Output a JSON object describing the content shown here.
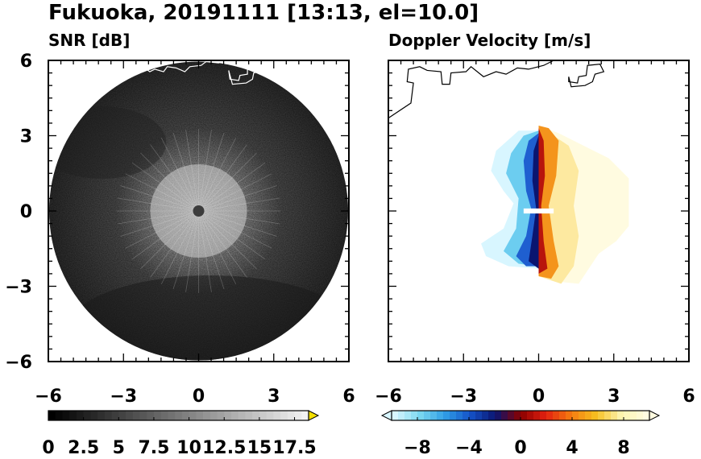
{
  "figure": {
    "title": "Fukuoka, 20191111 [13:13, el=10.0]"
  },
  "chart_data": [
    {
      "type": "heatmap",
      "title": "SNR [dB]",
      "xlim": [
        -6,
        6
      ],
      "ylim": [
        -6,
        6
      ],
      "xticks": [
        "−6",
        "−3",
        "0",
        "3",
        "6"
      ],
      "yticks": [
        "6",
        "3",
        "0",
        "−3",
        "−6"
      ],
      "xtick_values": [
        -6,
        -3,
        0,
        3,
        6
      ],
      "ytick_values": [
        6,
        3,
        0,
        -3,
        -6
      ],
      "grid": false,
      "colorbar": {
        "labels": [
          "0",
          "2.5",
          "5",
          "7.5",
          "10",
          "12.5",
          "15",
          "17.5"
        ],
        "label_values": [
          0,
          2.5,
          5,
          7.5,
          10,
          12.5,
          15,
          17.5
        ],
        "range": [
          0,
          18.5
        ],
        "extend": "max",
        "colormap": "gray",
        "low_color": "#000000",
        "high_color": "#f2f2f2",
        "extend_color": "#f5e000"
      }
    },
    {
      "type": "heatmap",
      "title": "Doppler Velocity [m/s]",
      "xlim": [
        -6,
        6
      ],
      "ylim": [
        -6,
        6
      ],
      "xticks": [
        "−6",
        "−3",
        "0",
        "3",
        "6"
      ],
      "xtick_values": [
        -6,
        -3,
        0,
        3,
        6
      ],
      "ytick_values": [
        6,
        3,
        0,
        -3,
        -6
      ],
      "grid": false,
      "colorbar": {
        "labels": [
          "−8",
          "−4",
          "0",
          "4",
          "8"
        ],
        "label_values": [
          -8,
          -4,
          0,
          4,
          8
        ],
        "range": [
          -10,
          10
        ],
        "extend": "both",
        "colormap": "diverging blue-red-yellow",
        "colors": [
          "#d8f6ff",
          "#7ad8f0",
          "#2f9de6",
          "#1452c8",
          "#0a1570",
          "#8a0000",
          "#e22010",
          "#f47a10",
          "#f7c020",
          "#fdf4b0",
          "#fffbe0"
        ]
      }
    }
  ]
}
